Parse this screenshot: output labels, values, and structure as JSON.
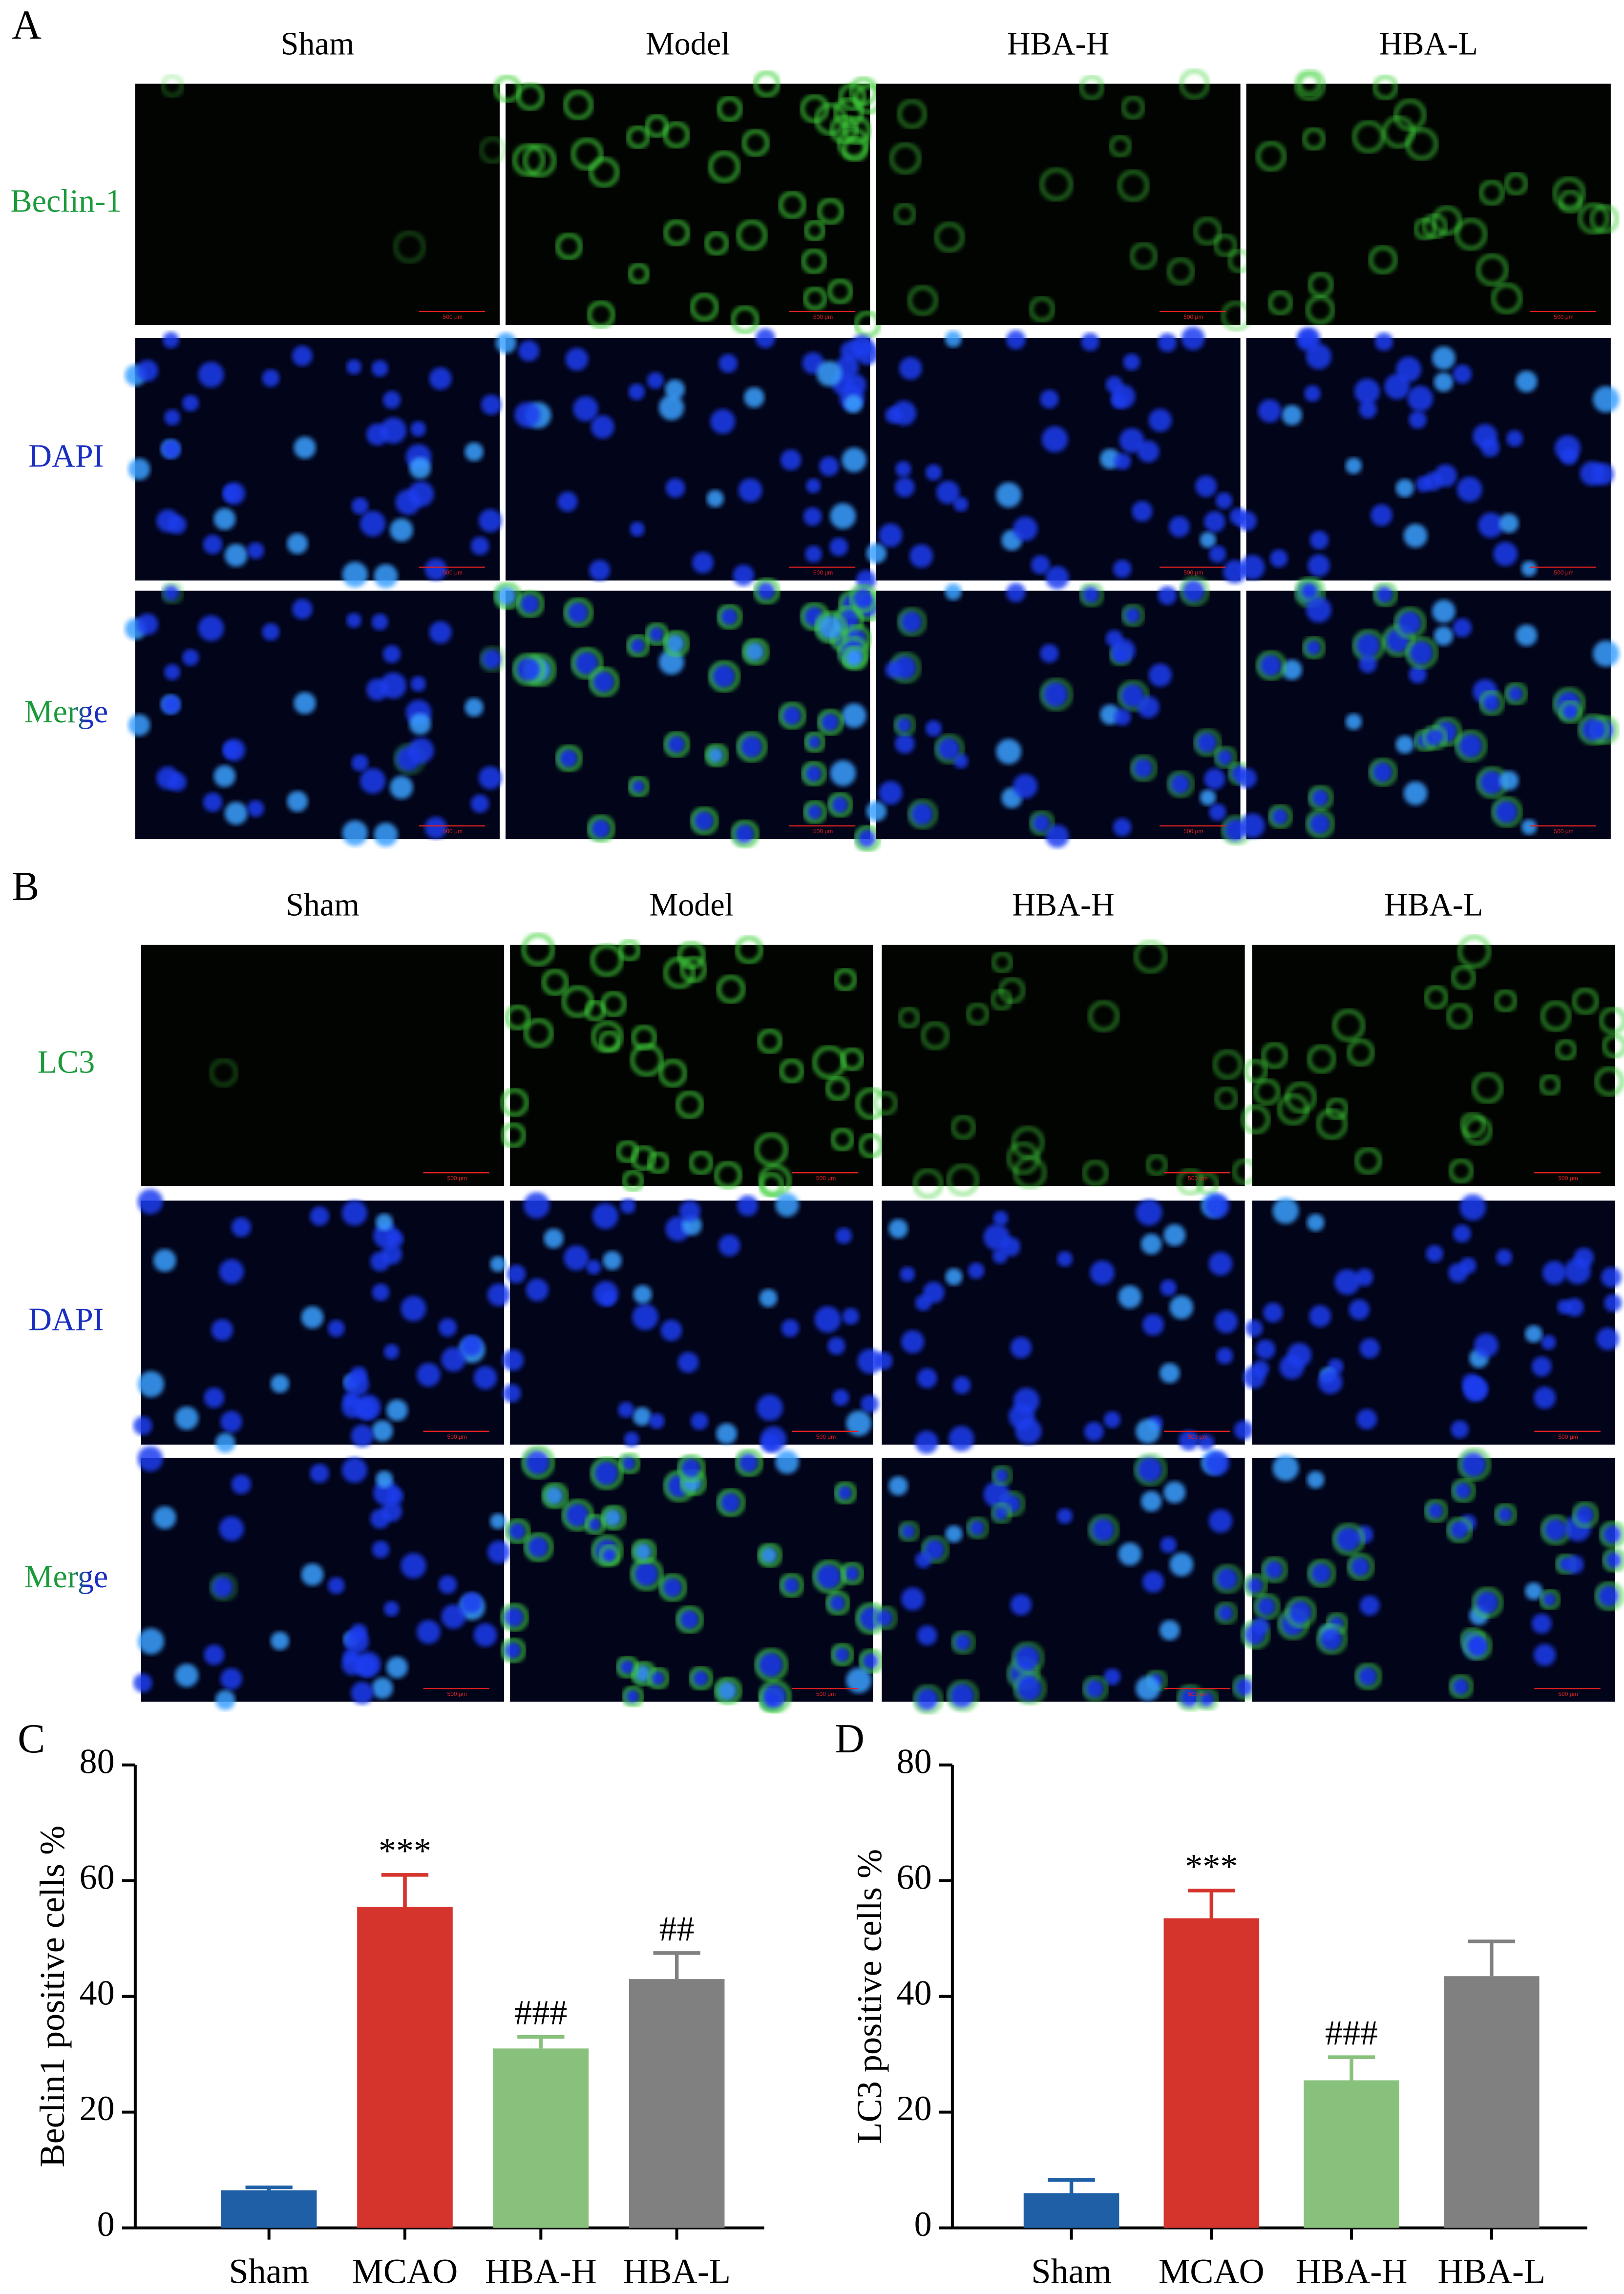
{
  "figure": {
    "panel_a": {
      "letter": "A",
      "columns": [
        "Sham",
        "Model",
        "HBA-H",
        "HBA-L"
      ],
      "rows": [
        "Beclin-1",
        "DAPI",
        "Merge"
      ]
    },
    "panel_b": {
      "letter": "B",
      "columns": [
        "Sham",
        "Model",
        "HBA-H",
        "HBA-L"
      ],
      "rows": [
        "LC3",
        "DAPI",
        "Merge"
      ]
    },
    "scale_bar": "500 μm"
  },
  "chart_data": [
    {
      "type": "bar",
      "panel": "C",
      "ylabel": "Beclin1 positive cells %",
      "categories": [
        "Sham",
        "MCAO",
        "HBA-H",
        "HBA-L"
      ],
      "values": [
        6.5,
        55.5,
        31,
        43
      ],
      "errors": [
        0.5,
        5.5,
        2,
        4.5
      ],
      "annotations": [
        "***",
        "###",
        "##"
      ],
      "annotation_bars": [
        1,
        2,
        3
      ],
      "colors": [
        "#1f5fa5",
        "#d5342d",
        "#88c17c",
        "#808080"
      ],
      "ylim": [
        0,
        80
      ],
      "yticks": [
        0,
        20,
        40,
        60,
        80
      ]
    },
    {
      "type": "bar",
      "panel": "D",
      "ylabel": "LC3 positive cells %",
      "categories": [
        "Sham",
        "MCAO",
        "HBA-H",
        "HBA-L"
      ],
      "values": [
        6,
        53.5,
        25.5,
        43.5
      ],
      "errors": [
        2.3,
        4.8,
        4,
        6
      ],
      "annotations": [
        "***",
        "###"
      ],
      "annotation_bars": [
        1,
        2
      ],
      "colors": [
        "#1f5fa5",
        "#d5342d",
        "#88c17c",
        "#808080"
      ],
      "ylim": [
        0,
        80
      ],
      "yticks": [
        0,
        20,
        40,
        60,
        80
      ]
    }
  ]
}
